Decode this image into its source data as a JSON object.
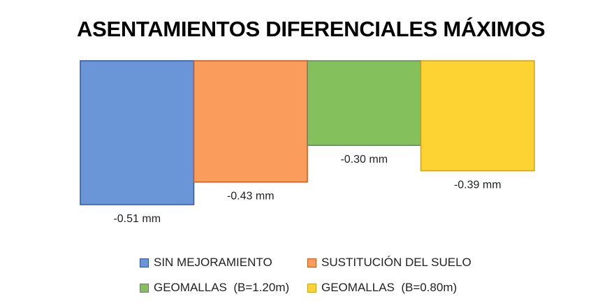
{
  "chart_data": {
    "type": "bar",
    "title": "ASENTAMIENTOS DIFERENCIALES MÁXIMOS",
    "xlabel": "",
    "ylabel": "",
    "unit": "mm",
    "ylim": [
      -0.51,
      0
    ],
    "grid": false,
    "legend_placement": "bottom",
    "series": [
      {
        "name": "SIN MEJORAMIENTO",
        "value": -0.51,
        "label": "-0.51 mm",
        "fill": "#6A96D8",
        "stroke": "#2F54A2"
      },
      {
        "name": "SUSTITUCIÓN DEL SUELO",
        "value": -0.43,
        "label": "-0.43 mm",
        "fill": "#F99C5C",
        "stroke": "#C8571C"
      },
      {
        "name": "GEOMALLAS  (B=1.20m)",
        "value": -0.3,
        "label": "-0.30 mm",
        "fill": "#84C15C",
        "stroke": "#6F7F6A"
      },
      {
        "name": "GEOMALLAS  (B=0.80m)",
        "value": -0.39,
        "label": "-0.39 mm",
        "fill": "#FDD233",
        "stroke": "#C9A21E"
      }
    ]
  }
}
